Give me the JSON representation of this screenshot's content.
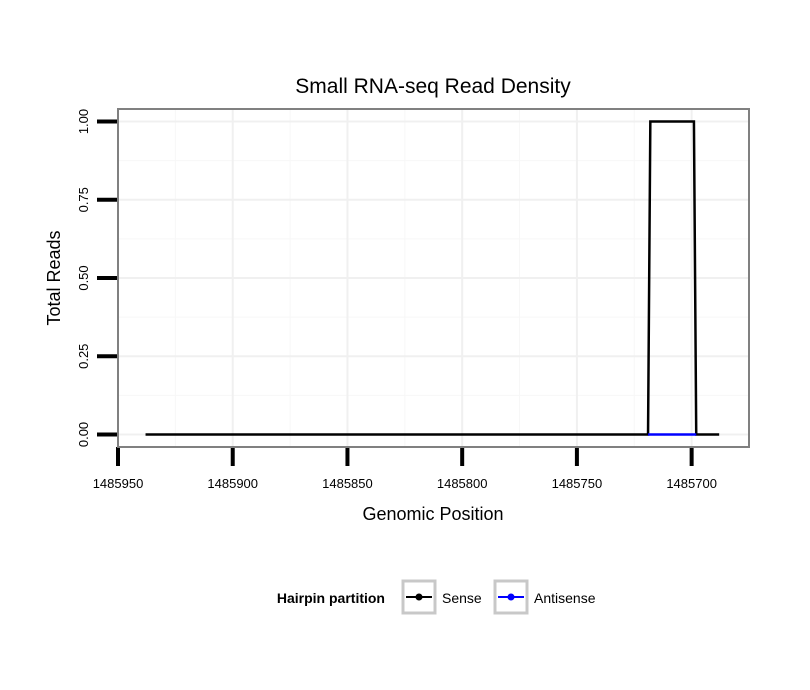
{
  "chart_data": {
    "type": "line",
    "title": "Small RNA-seq Read Density",
    "xlabel": "Genomic Position",
    "ylabel": "Total Reads",
    "x_reversed": true,
    "xlim": [
      1485950,
      1485675
    ],
    "ylim": [
      -0.04,
      1.04
    ],
    "x_ticks": [
      1485950,
      1485900,
      1485850,
      1485800,
      1485750,
      1485700
    ],
    "x_tick_labels": [
      "1485950",
      "1485900",
      "1485850",
      "1485800",
      "1485750",
      "1485700"
    ],
    "y_ticks": [
      0,
      0.25,
      0.5,
      0.75,
      1.0
    ],
    "y_tick_labels": [
      "0.00",
      "0.25",
      "0.50",
      "0.75",
      "1.00"
    ],
    "grid": true,
    "legend_title": "Hairpin partition",
    "legend_position": "bottom",
    "series": [
      {
        "name": "Sense",
        "color": "#000000",
        "x": [
          1485938,
          1485719,
          1485718,
          1485699,
          1485698,
          1485688
        ],
        "y": [
          0,
          0,
          1,
          1,
          0,
          0
        ]
      },
      {
        "name": "Antisense",
        "color": "#0000ff",
        "x": [
          1485719,
          1485698
        ],
        "y": [
          0,
          0
        ]
      }
    ]
  }
}
